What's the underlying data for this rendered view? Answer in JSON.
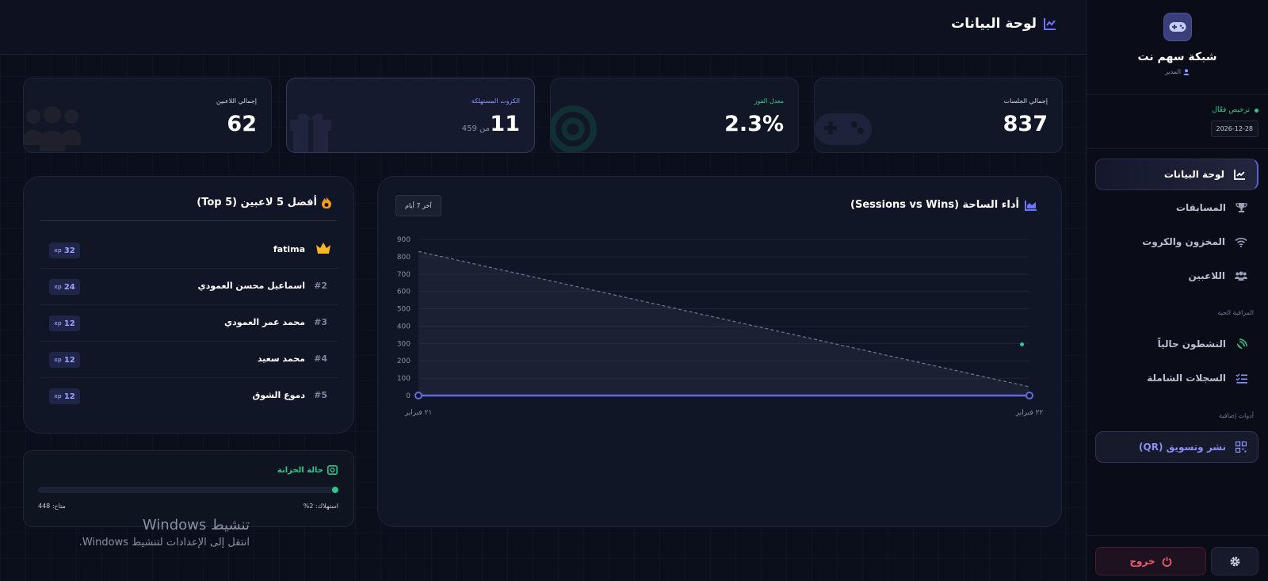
{
  "brand": {
    "name": "شبكة سهم نت",
    "role": "المدير",
    "logo_icon": "gamepad-icon"
  },
  "license": {
    "status": "ترخيص فعّال",
    "date": "2026-12-28"
  },
  "nav": {
    "items": [
      {
        "label": "لوحة البيانات",
        "icon": "chart-line-icon",
        "active": true
      },
      {
        "label": "المسابقات",
        "icon": "trophy-icon"
      },
      {
        "label": "المخزون والكروت",
        "icon": "wifi-icon"
      },
      {
        "label": "اللاعبين",
        "icon": "users-icon"
      }
    ],
    "live_section": "المراقبة الحية",
    "live_items": [
      {
        "label": "النشطون حالياً",
        "icon": "satellite-dish-icon"
      },
      {
        "label": "السجلات الشاملة",
        "icon": "list-check-icon"
      }
    ],
    "tools_section": "أدوات إضافية",
    "tools_items": [
      {
        "label": "نشر وتسويق (QR)",
        "icon": "qrcode-icon"
      }
    ],
    "logout": "خروج"
  },
  "header": {
    "title": "لوحة البيانات"
  },
  "stats": [
    {
      "label": "إجمالي الجلسات",
      "value": "837",
      "icon": "gamepad-icon",
      "label_color": "#d0d4e2"
    },
    {
      "label": "معدل الفوز",
      "value": "2.3%",
      "icon": "target-icon",
      "label_color": "#2ec98a"
    },
    {
      "label": "الكروت المستهلكة",
      "value": "11",
      "sub": "من 459",
      "icon": "gift-icon",
      "label_color": "#8d93ff"
    },
    {
      "label": "إجمالي اللاعبين",
      "value": "62",
      "icon": "users-icon",
      "label_color": "#d0d4e2"
    }
  ],
  "chart": {
    "title": "أداء الساحة (Sessions vs Wins)",
    "range": "آخر 7 أيام"
  },
  "chart_data": {
    "type": "line",
    "x": [
      "٢١ فبراير",
      "٢٢ فبراير"
    ],
    "series": [
      {
        "values": [
          830,
          50
        ],
        "color": "#6b7188",
        "style": "dashed",
        "fill": true
      },
      {
        "values": [
          0,
          0
        ],
        "color": "#6369e0",
        "style": "solid",
        "fill": false
      }
    ],
    "yticks": [
      0,
      100,
      200,
      300,
      400,
      500,
      600,
      700,
      800,
      900
    ],
    "ylim": [
      0,
      900
    ],
    "grid": true,
    "legend": "none"
  },
  "leaderboard": {
    "title": "أفضل 5 لاعبين (Top 5)",
    "xp_unit": "xp",
    "players": [
      {
        "rank": "",
        "name": "fatima",
        "xp": "32",
        "crown": true
      },
      {
        "rank": "#2",
        "name": "اسماعيل محسن العمودي",
        "xp": "24"
      },
      {
        "rank": "#3",
        "name": "محمد عمر العمودي",
        "xp": "12"
      },
      {
        "rank": "#4",
        "name": "محمد سعيد",
        "xp": "12"
      },
      {
        "rank": "#5",
        "name": "دموع الشوق",
        "xp": "12"
      }
    ]
  },
  "treasury": {
    "title": "حالة الخزانة",
    "consumed_label": "استهلاك: 2%",
    "available_label": "متاح: 448",
    "consumed_fraction": 0.02
  },
  "windows_watermark": {
    "title": "تنشيط Windows",
    "subtitle": "انتقل إلى الإعدادات لتنشيط Windows."
  }
}
